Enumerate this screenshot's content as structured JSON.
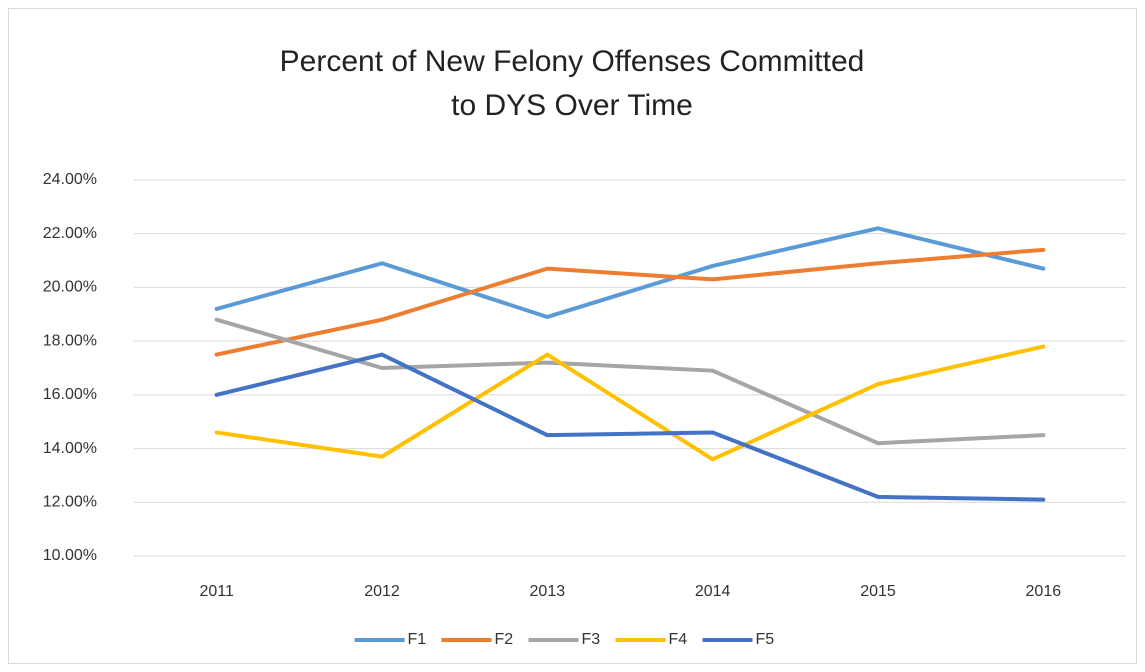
{
  "chart_data": {
    "type": "line",
    "title": "Percent of New Felony Offenses Committed to DYS Over Time",
    "categories": [
      "2011",
      "2012",
      "2013",
      "2014",
      "2015",
      "2016"
    ],
    "series": [
      {
        "name": "F1",
        "color": "#5b9bd5",
        "values": [
          19.2,
          20.9,
          18.9,
          20.8,
          22.2,
          20.7
        ]
      },
      {
        "name": "F2",
        "color": "#ed7d31",
        "values": [
          17.5,
          18.8,
          20.7,
          20.3,
          20.9,
          21.4
        ]
      },
      {
        "name": "F3",
        "color": "#a5a5a5",
        "values": [
          18.8,
          17.0,
          17.2,
          16.9,
          14.2,
          14.5
        ]
      },
      {
        "name": "F4",
        "color": "#ffc000",
        "values": [
          14.6,
          13.7,
          17.5,
          13.6,
          16.4,
          17.8
        ]
      },
      {
        "name": "F5",
        "color": "#4472c4",
        "values": [
          16.0,
          17.5,
          14.5,
          14.6,
          12.2,
          12.1
        ]
      }
    ],
    "ylim": [
      10,
      24
    ],
    "yticks": [
      {
        "value": 10,
        "label": "10.00%"
      },
      {
        "value": 12,
        "label": "12.00%"
      },
      {
        "value": 14,
        "label": "14.00%"
      },
      {
        "value": 16,
        "label": "16.00%"
      },
      {
        "value": 18,
        "label": "18.00%"
      },
      {
        "value": 20,
        "label": "20.00%"
      },
      {
        "value": 22,
        "label": "22.00%"
      },
      {
        "value": 24,
        "label": "24.00%"
      }
    ],
    "grid": true,
    "legend": "bottom"
  }
}
